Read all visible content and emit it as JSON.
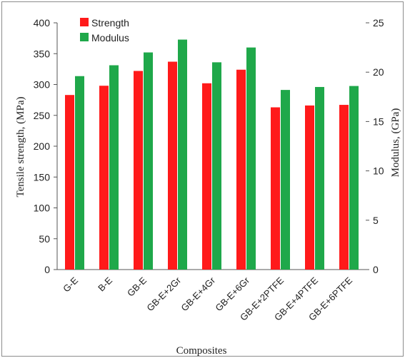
{
  "chart_data": {
    "type": "bar",
    "categories": [
      "G-E",
      "B-E",
      "GB-E",
      "GB-E+2Gr",
      "GB-E+4Gr",
      "GB-E+6Gr",
      "GB-E+2PTFE",
      "GB-E+4PTFE",
      "GB-E+6PTFE"
    ],
    "series": [
      {
        "name": "Strength",
        "axis": "left",
        "color": "#ff1a1a",
        "values": [
          283,
          298,
          322,
          337,
          302,
          324,
          263,
          266,
          267
        ]
      },
      {
        "name": "Modulus",
        "axis": "right",
        "color": "#1fa84a",
        "values": [
          19.6,
          20.7,
          22.0,
          23.3,
          21.0,
          22.5,
          18.2,
          18.5,
          18.6
        ]
      }
    ],
    "xlabel": "Composites",
    "ylabel": "Tensile strength, (MPa)",
    "y2label": "Modulus, (GPa)",
    "ylim": [
      0,
      400
    ],
    "y2lim": [
      0,
      25
    ],
    "yticks": [
      "0",
      "50",
      "100",
      "150",
      "200",
      "250",
      "300",
      "350",
      "400"
    ],
    "y2ticks": [
      "0",
      "5",
      "10",
      "15",
      "20",
      "25"
    ],
    "grid": false,
    "legend_position": "top-left"
  }
}
